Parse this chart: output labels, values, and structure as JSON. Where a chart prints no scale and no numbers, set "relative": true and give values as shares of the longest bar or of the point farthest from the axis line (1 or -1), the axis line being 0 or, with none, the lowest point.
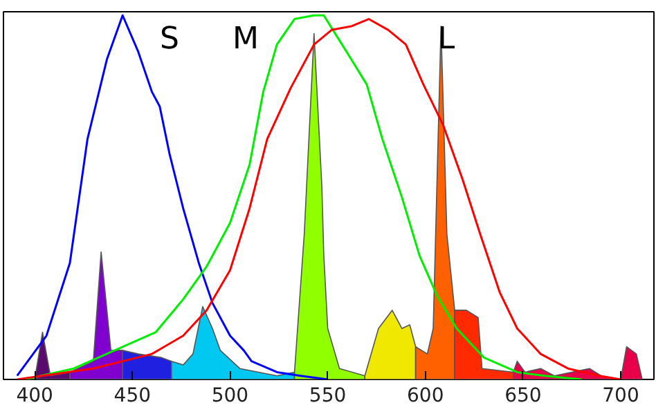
{
  "chart_data": {
    "type": "line",
    "relative": true,
    "xlim": [
      384,
      717
    ],
    "xticks": [
      400,
      450,
      500,
      550,
      600,
      650,
      700
    ],
    "grid": false,
    "marker": "none",
    "line_style": "solid",
    "annotations": [
      "S",
      "M",
      "L"
    ],
    "series": [
      {
        "type": "area",
        "color": "#5a0a6e",
        "x": [
          395,
          400,
          404,
          408,
          418
        ],
        "values": [
          0.0,
          0.0,
          0.13,
          0.01,
          0.02
        ]
      },
      {
        "type": "area",
        "color": "#8000d0",
        "x": [
          418,
          430,
          434,
          439,
          445
        ],
        "values": [
          0.02,
          0.05,
          0.35,
          0.08,
          0.08
        ]
      },
      {
        "type": "area",
        "color": "#2020e0",
        "x": [
          445,
          453,
          465,
          470
        ],
        "values": [
          0.08,
          0.07,
          0.06,
          0.05
        ]
      },
      {
        "type": "area",
        "color": "#00c8f0",
        "x": [
          470,
          476,
          481,
          486,
          491,
          495,
          505,
          524,
          533
        ],
        "values": [
          0.05,
          0.04,
          0.07,
          0.2,
          0.14,
          0.08,
          0.03,
          0.01,
          0.02
        ]
      },
      {
        "type": "area",
        "color": "#90ff00",
        "x": [
          533,
          538,
          543,
          547,
          548,
          550,
          556,
          569
        ],
        "values": [
          0.02,
          0.4,
          0.95,
          0.53,
          0.34,
          0.14,
          0.03,
          0.01
        ]
      },
      {
        "type": "area",
        "color": "#f0e800",
        "x": [
          569,
          576,
          583,
          588,
          592,
          595
        ],
        "values": [
          0.01,
          0.14,
          0.19,
          0.14,
          0.15,
          0.09
        ]
      },
      {
        "type": "area",
        "color": "#ff6000",
        "x": [
          595,
          601,
          604,
          608,
          611,
          615
        ],
        "values": [
          0.09,
          0.07,
          0.14,
          0.97,
          0.4,
          0.19
        ]
      },
      {
        "type": "area",
        "color": "#ff2a00",
        "x": [
          615,
          621,
          627,
          629,
          645
        ],
        "values": [
          0.19,
          0.19,
          0.17,
          0.03,
          0.02
        ]
      },
      {
        "type": "area",
        "color": "#e8004a",
        "x": [
          645,
          647,
          651,
          659,
          666,
          684,
          690,
          700,
          703,
          708,
          711
        ],
        "values": [
          0.02,
          0.05,
          0.02,
          0.03,
          0.01,
          0.03,
          0.01,
          0.0,
          0.09,
          0.07,
          0.0
        ]
      },
      {
        "color": "#0000ff",
        "x": [
          391,
          406,
          418,
          427,
          437,
          445,
          453,
          460,
          464,
          469,
          476,
          484,
          491,
          500,
          507,
          511,
          524,
          536,
          550
        ],
        "values": [
          0.01,
          0.12,
          0.32,
          0.66,
          0.88,
          1.0,
          0.9,
          0.79,
          0.75,
          0.62,
          0.47,
          0.32,
          0.21,
          0.12,
          0.08,
          0.05,
          0.02,
          0.01,
          0.0
        ]
      },
      {
        "color": "#00ee00",
        "x": [
          395,
          420,
          441,
          462,
          476,
          488,
          500,
          510,
          517,
          524,
          533,
          543,
          548,
          555,
          562,
          570,
          578,
          588,
          597,
          606,
          616,
          630,
          647,
          661,
          680
        ],
        "values": [
          0.0,
          0.03,
          0.08,
          0.13,
          0.22,
          0.31,
          0.43,
          0.59,
          0.79,
          0.92,
          0.99,
          1.0,
          1.0,
          0.94,
          0.88,
          0.81,
          0.66,
          0.5,
          0.34,
          0.23,
          0.14,
          0.06,
          0.02,
          0.01,
          0.0
        ]
      },
      {
        "color": "#ff0000",
        "x": [
          391,
          430,
          460,
          476,
          488,
          500,
          510,
          519,
          531,
          543,
          552,
          562,
          571,
          581,
          590,
          599,
          609,
          619,
          628,
          638,
          647,
          659,
          673,
          689,
          700
        ],
        "values": [
          0.0,
          0.03,
          0.07,
          0.12,
          0.19,
          0.3,
          0.47,
          0.66,
          0.8,
          0.92,
          0.96,
          0.97,
          0.99,
          0.96,
          0.92,
          0.81,
          0.7,
          0.55,
          0.4,
          0.24,
          0.14,
          0.07,
          0.03,
          0.01,
          0.0
        ]
      }
    ]
  }
}
